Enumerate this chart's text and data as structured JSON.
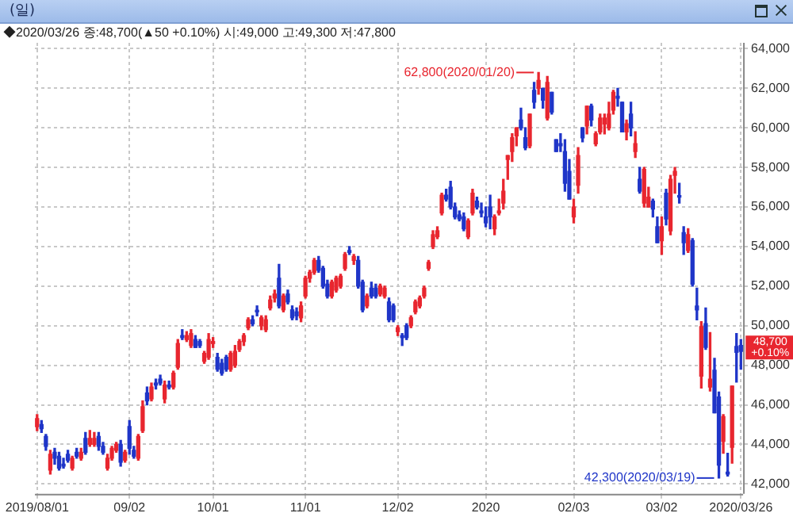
{
  "chart_data": {
    "type": "candlestick",
    "title": "(일)",
    "categories": [
      "2019/08/01",
      null,
      null,
      null,
      null,
      null,
      null,
      null,
      null,
      null,
      null,
      null,
      null,
      null,
      null,
      null,
      null,
      null,
      null,
      null,
      null,
      "09/02",
      null,
      null,
      null,
      null,
      null,
      null,
      null,
      null,
      null,
      null,
      null,
      null,
      null,
      null,
      null,
      null,
      null,
      null,
      "10/01",
      null,
      null,
      null,
      null,
      null,
      null,
      null,
      null,
      null,
      null,
      null,
      null,
      null,
      null,
      null,
      null,
      null,
      null,
      null,
      null,
      "11/01",
      null,
      null,
      null,
      null,
      null,
      null,
      null,
      null,
      null,
      null,
      null,
      null,
      null,
      null,
      null,
      null,
      null,
      null,
      null,
      null,
      "12/02",
      null,
      null,
      null,
      null,
      null,
      null,
      null,
      null,
      null,
      null,
      null,
      null,
      null,
      null,
      null,
      null,
      null,
      null,
      null,
      "2020",
      null,
      null,
      null,
      null,
      null,
      null,
      null,
      null,
      null,
      null,
      null,
      null,
      null,
      null,
      null,
      null,
      null,
      null,
      null,
      "02/03",
      null,
      null,
      null,
      null,
      null,
      null,
      null,
      null,
      null,
      null,
      null,
      null,
      null,
      null,
      null,
      null,
      null,
      null,
      null,
      "03/02",
      null,
      null,
      null,
      null,
      null,
      null,
      null,
      null,
      null,
      null,
      null,
      null,
      null,
      null,
      null,
      null,
      null,
      "2020/03/26"
    ],
    "ohlc": [
      [
        44900,
        45500,
        44700,
        45300
      ],
      [
        45000,
        45200,
        44600,
        44800
      ],
      [
        44400,
        44500,
        43700,
        43900
      ],
      [
        42700,
        43700,
        42500,
        43500
      ],
      [
        43600,
        43800,
        43000,
        43300
      ],
      [
        43400,
        43600,
        42700,
        42800
      ],
      [
        43000,
        43300,
        42800,
        42900
      ],
      [
        43500,
        43700,
        43100,
        43200
      ],
      [
        42800,
        43400,
        42700,
        43300
      ],
      [
        43600,
        43800,
        43300,
        43400
      ],
      [
        43300,
        43800,
        43200,
        43600
      ],
      [
        44300,
        44600,
        43500,
        43600
      ],
      [
        44000,
        44700,
        43900,
        44300
      ],
      [
        44000,
        44600,
        43900,
        44300
      ],
      [
        44400,
        44600,
        43700,
        43900
      ],
      [
        43900,
        44100,
        43500,
        43600
      ],
      [
        42800,
        43500,
        42700,
        43300
      ],
      [
        43300,
        43900,
        43200,
        43800
      ],
      [
        43700,
        44100,
        43600,
        44000
      ],
      [
        44000,
        44200,
        42900,
        43100
      ],
      [
        43200,
        43700,
        43100,
        43600
      ],
      [
        44900,
        45200,
        43500,
        43800
      ],
      [
        43700,
        43900,
        43300,
        43400
      ],
      [
        43300,
        44500,
        43200,
        44400
      ],
      [
        44700,
        46200,
        44600,
        45900
      ],
      [
        46600,
        46900,
        46000,
        46200
      ],
      [
        46300,
        47100,
        46200,
        46900
      ],
      [
        47100,
        47300,
        46800,
        47000
      ],
      [
        47300,
        47500,
        47000,
        47100
      ],
      [
        46300,
        47200,
        46100,
        47000
      ],
      [
        47000,
        47200,
        46800,
        46900
      ],
      [
        46900,
        47700,
        46800,
        47600
      ],
      [
        47900,
        49300,
        47800,
        49100
      ],
      [
        49500,
        49800,
        49300,
        49400
      ],
      [
        49300,
        49700,
        49200,
        49500
      ],
      [
        49000,
        49800,
        48900,
        49600
      ],
      [
        49300,
        49500,
        48900,
        48900
      ],
      [
        49200,
        49300,
        48900,
        49000
      ],
      [
        48200,
        48700,
        48100,
        48600
      ],
      [
        48400,
        49600,
        48300,
        49300
      ],
      [
        49100,
        49400,
        48900,
        49200
      ],
      [
        48400,
        48600,
        47700,
        47800
      ],
      [
        48100,
        48300,
        47500,
        47600
      ],
      [
        48400,
        48500,
        47700,
        47800
      ],
      [
        47800,
        48700,
        47700,
        48600
      ],
      [
        48000,
        49000,
        47900,
        48700
      ],
      [
        48800,
        49300,
        48700,
        49200
      ],
      [
        49200,
        49600,
        49000,
        49500
      ],
      [
        49900,
        50400,
        49800,
        50300
      ],
      [
        50300,
        50500,
        50000,
        50100
      ],
      [
        50700,
        51000,
        50500,
        50700
      ],
      [
        50000,
        50500,
        49800,
        50400
      ],
      [
        49800,
        50500,
        49700,
        50300
      ],
      [
        50900,
        51500,
        50800,
        51300
      ],
      [
        51400,
        51800,
        51200,
        51600
      ],
      [
        52400,
        53100,
        50900,
        51000
      ],
      [
        50800,
        51600,
        50700,
        51500
      ],
      [
        51600,
        51800,
        51100,
        51200
      ],
      [
        50800,
        51000,
        50300,
        50400
      ],
      [
        50700,
        50900,
        50300,
        50500
      ],
      [
        50400,
        51200,
        50200,
        51000
      ],
      [
        51500,
        52500,
        51400,
        52400
      ],
      [
        52400,
        52800,
        52200,
        52700
      ],
      [
        52700,
        53400,
        52600,
        53300
      ],
      [
        53300,
        53500,
        52700,
        52800
      ],
      [
        52900,
        53000,
        51900,
        52000
      ],
      [
        52100,
        52300,
        51400,
        51500
      ],
      [
        51500,
        52300,
        51400,
        52200
      ],
      [
        51800,
        52500,
        51700,
        52400
      ],
      [
        52000,
        52600,
        51900,
        52500
      ],
      [
        52900,
        53700,
        52800,
        53600
      ],
      [
        53800,
        54000,
        53600,
        53700
      ],
      [
        53300,
        53600,
        53100,
        53500
      ],
      [
        53300,
        53500,
        51900,
        52000
      ],
      [
        52200,
        52300,
        50700,
        50800
      ],
      [
        51000,
        51600,
        50900,
        51500
      ],
      [
        51900,
        52200,
        51400,
        51500
      ],
      [
        51900,
        52100,
        51400,
        51500
      ],
      [
        51600,
        52100,
        51500,
        52000
      ],
      [
        51500,
        52000,
        51400,
        51900
      ],
      [
        51200,
        51400,
        50200,
        50300
      ],
      [
        51000,
        51100,
        50200,
        50300
      ],
      [
        49700,
        50000,
        49500,
        49900
      ],
      [
        49500,
        49600,
        49000,
        49400
      ],
      [
        50000,
        50100,
        49300,
        49400
      ],
      [
        50000,
        50500,
        49900,
        50400
      ],
      [
        50700,
        51300,
        50600,
        51200
      ],
      [
        51000,
        51500,
        50900,
        51400
      ],
      [
        51500,
        52000,
        51400,
        51900
      ],
      [
        52900,
        53300,
        52800,
        53200
      ],
      [
        54000,
        54800,
        53900,
        54600
      ],
      [
        54500,
        55000,
        54400,
        54800
      ],
      [
        55700,
        56700,
        55600,
        56600
      ],
      [
        56600,
        56900,
        56300,
        56400
      ],
      [
        57000,
        57300,
        55900,
        56000
      ],
      [
        56000,
        56200,
        55400,
        55500
      ],
      [
        55600,
        55800,
        55300,
        55400
      ],
      [
        55500,
        55700,
        54800,
        54900
      ],
      [
        54500,
        55400,
        54400,
        55300
      ],
      [
        55700,
        56900,
        55600,
        56700
      ],
      [
        56300,
        56500,
        55900,
        56000
      ],
      [
        55700,
        56200,
        55500,
        55800
      ],
      [
        55500,
        56000,
        55000,
        55200
      ],
      [
        56000,
        56600,
        54900,
        55500
      ],
      [
        54900,
        55600,
        54600,
        55500
      ],
      [
        55700,
        56400,
        55600,
        55800
      ],
      [
        56200,
        57400,
        55900,
        56800
      ],
      [
        58400,
        58600,
        57400,
        58600
      ],
      [
        58800,
        59700,
        58300,
        59500
      ],
      [
        59600,
        60000,
        59100,
        60000
      ],
      [
        60400,
        61000,
        59900,
        60000
      ],
      [
        59500,
        60000,
        58900,
        59000
      ],
      [
        59100,
        60700,
        59000,
        60700
      ],
      [
        61900,
        62300,
        61000,
        61300
      ],
      [
        62000,
        62800,
        61700,
        62400
      ],
      [
        62000,
        62000,
        61000,
        61400
      ],
      [
        60500,
        62600,
        60400,
        62300
      ],
      [
        61800,
        61800,
        60700,
        60800
      ],
      [
        59400,
        59400,
        58800,
        58800
      ],
      [
        59200,
        59700,
        58800,
        59100
      ],
      [
        58800,
        59400,
        56800,
        57200
      ],
      [
        57800,
        58400,
        56400,
        56400
      ],
      [
        55500,
        56400,
        55200,
        56000
      ],
      [
        57100,
        59000,
        56700,
        58600
      ],
      [
        60000,
        60000,
        59300,
        59500
      ],
      [
        60100,
        61100,
        59700,
        61100
      ],
      [
        61100,
        61200,
        60100,
        60400
      ],
      [
        59200,
        59800,
        59100,
        59700
      ],
      [
        59800,
        60700,
        59700,
        60500
      ],
      [
        60200,
        60700,
        59700,
        60500
      ],
      [
        60000,
        61300,
        59900,
        60700
      ],
      [
        60900,
        61900,
        60700,
        61800
      ],
      [
        61600,
        62000,
        61100,
        61500
      ],
      [
        61300,
        61300,
        59800,
        59800
      ],
      [
        59800,
        60400,
        59400,
        60200
      ],
      [
        60700,
        61300,
        59600,
        60000
      ],
      [
        58800,
        59800,
        58500,
        59200
      ],
      [
        57400,
        58000,
        56700,
        56800
      ],
      [
        56200,
        58000,
        56000,
        57900
      ],
      [
        56000,
        57000,
        56000,
        56500
      ],
      [
        56300,
        56400,
        55500,
        55900
      ],
      [
        55000,
        55500,
        54200,
        54200
      ],
      [
        54300,
        55500,
        53600,
        55000
      ],
      [
        56700,
        56900,
        55100,
        55400
      ],
      [
        54800,
        57600,
        54600,
        57400
      ],
      [
        57600,
        58000,
        56700,
        57800
      ],
      [
        56500,
        57200,
        56200,
        56500
      ],
      [
        54700,
        55000,
        53600,
        54200
      ],
      [
        53800,
        54900,
        53700,
        54600
      ],
      [
        54300,
        54400,
        52000,
        52100
      ],
      [
        51000,
        51900,
        50300,
        50800
      ],
      [
        47450,
        50200,
        46850,
        49950
      ],
      [
        50100,
        50900,
        48800,
        48900
      ],
      [
        46900,
        49650,
        46700,
        47300
      ],
      [
        47750,
        48350,
        45600,
        45600
      ],
      [
        46400,
        46650,
        42300,
        42950
      ],
      [
        44150,
        45500,
        43550,
        45400
      ],
      [
        42600,
        43550,
        42400,
        42500
      ],
      [
        43850,
        46950,
        43050,
        46950
      ],
      [
        48950,
        49600,
        47150,
        48650
      ],
      [
        49000,
        49300,
        47800,
        48700
      ]
    ],
    "colors": [
      "#e8262f",
      "#1f35c8",
      "#1f35c8",
      "#e8262f",
      "#1f35c8",
      "#1f35c8",
      "#1f35c8",
      "#1f35c8",
      "#e8262f",
      "#1f35c8",
      "#e8262f",
      "#1f35c8",
      "#e8262f",
      "#e8262f",
      "#1f35c8",
      "#1f35c8",
      "#e8262f",
      "#e8262f",
      "#e8262f",
      "#1f35c8",
      "#e8262f",
      "#1f35c8",
      "#1f35c8",
      "#e8262f",
      "#e8262f",
      "#1f35c8",
      "#e8262f",
      "#1f35c8",
      "#1f35c8",
      "#e8262f",
      "#1f35c8",
      "#e8262f",
      "#e8262f",
      "#1f35c8",
      "#e8262f",
      "#e8262f",
      "#1f35c8",
      "#1f35c8",
      "#e8262f",
      "#e8262f",
      "#e8262f",
      "#1f35c8",
      "#1f35c8",
      "#1f35c8",
      "#e8262f",
      "#e8262f",
      "#e8262f",
      "#e8262f",
      "#e8262f",
      "#1f35c8",
      "#1f35c8",
      "#e8262f",
      "#e8262f",
      "#e8262f",
      "#e8262f",
      "#1f35c8",
      "#e8262f",
      "#1f35c8",
      "#1f35c8",
      "#1f35c8",
      "#e8262f",
      "#e8262f",
      "#e8262f",
      "#e8262f",
      "#1f35c8",
      "#1f35c8",
      "#1f35c8",
      "#e8262f",
      "#e8262f",
      "#e8262f",
      "#e8262f",
      "#1f35c8",
      "#e8262f",
      "#1f35c8",
      "#1f35c8",
      "#e8262f",
      "#1f35c8",
      "#1f35c8",
      "#e8262f",
      "#e8262f",
      "#1f35c8",
      "#1f35c8",
      "#e8262f",
      "#1f35c8",
      "#1f35c8",
      "#e8262f",
      "#e8262f",
      "#e8262f",
      "#e8262f",
      "#e8262f",
      "#e8262f",
      "#e8262f",
      "#e8262f",
      "#1f35c8",
      "#1f35c8",
      "#1f35c8",
      "#1f35c8",
      "#1f35c8",
      "#e8262f",
      "#e8262f",
      "#1f35c8",
      "#1f35c8",
      "#1f35c8",
      "#1f35c8",
      "#e8262f",
      "#e8262f",
      "#e8262f",
      "#e8262f",
      "#e8262f",
      "#e8262f",
      "#1f35c8",
      "#1f35c8",
      "#e8262f",
      "#1f35c8",
      "#e8262f",
      "#1f35c8",
      "#e8262f",
      "#1f35c8",
      "#1f35c8",
      "#1f35c8",
      "#1f35c8",
      "#1f35c8",
      "#e8262f",
      "#e8262f",
      "#1f35c8",
      "#e8262f",
      "#1f35c8",
      "#e8262f",
      "#e8262f",
      "#e8262f",
      "#e8262f",
      "#e8262f",
      "#1f35c8",
      "#1f35c8",
      "#e8262f",
      "#1f35c8",
      "#e8262f",
      "#1f35c8",
      "#e8262f",
      "#e8262f",
      "#1f35c8",
      "#1f35c8",
      "#e8262f",
      "#1f35c8",
      "#e8262f",
      "#e8262f",
      "#1f35c8",
      "#1f35c8",
      "#e8262f",
      "#1f35c8",
      "#1f35c8",
      "#e8262f",
      "#1f35c8",
      "#e8262f",
      "#1f35c8",
      "#1f35c8",
      "#e8262f",
      "#1f35c8",
      "#e8262f",
      "#1f35c8",
      "#1f35c8"
    ],
    "ylim": [
      41500,
      64300
    ],
    "yticks": [
      {
        "value": 42000,
        "label": "42,000"
      },
      {
        "value": 44000,
        "label": "44,000"
      },
      {
        "value": 46000,
        "label": "46,000"
      },
      {
        "value": 48000,
        "label": "48,000"
      },
      {
        "value": 50000,
        "label": "50,000"
      },
      {
        "value": 52000,
        "label": "52,000"
      },
      {
        "value": 54000,
        "label": "54,000"
      },
      {
        "value": 56000,
        "label": "56,000"
      },
      {
        "value": 58000,
        "label": "58,000"
      },
      {
        "value": 60000,
        "label": "60,000"
      },
      {
        "value": 62000,
        "label": "62,000"
      },
      {
        "value": 64000,
        "label": "64,000"
      }
    ],
    "grid": true,
    "annotations": [
      "◆2020/03/26 종:48,700(▲50 +0.10%) 시:49,000 고:49,300 저:47,800",
      "62,800(2020/01/20)",
      "42,300(2020/03/19)",
      {
        "text": "48,700 +0.10%",
        "x": "2020/03/26",
        "y": 48700
      }
    ]
  }
}
